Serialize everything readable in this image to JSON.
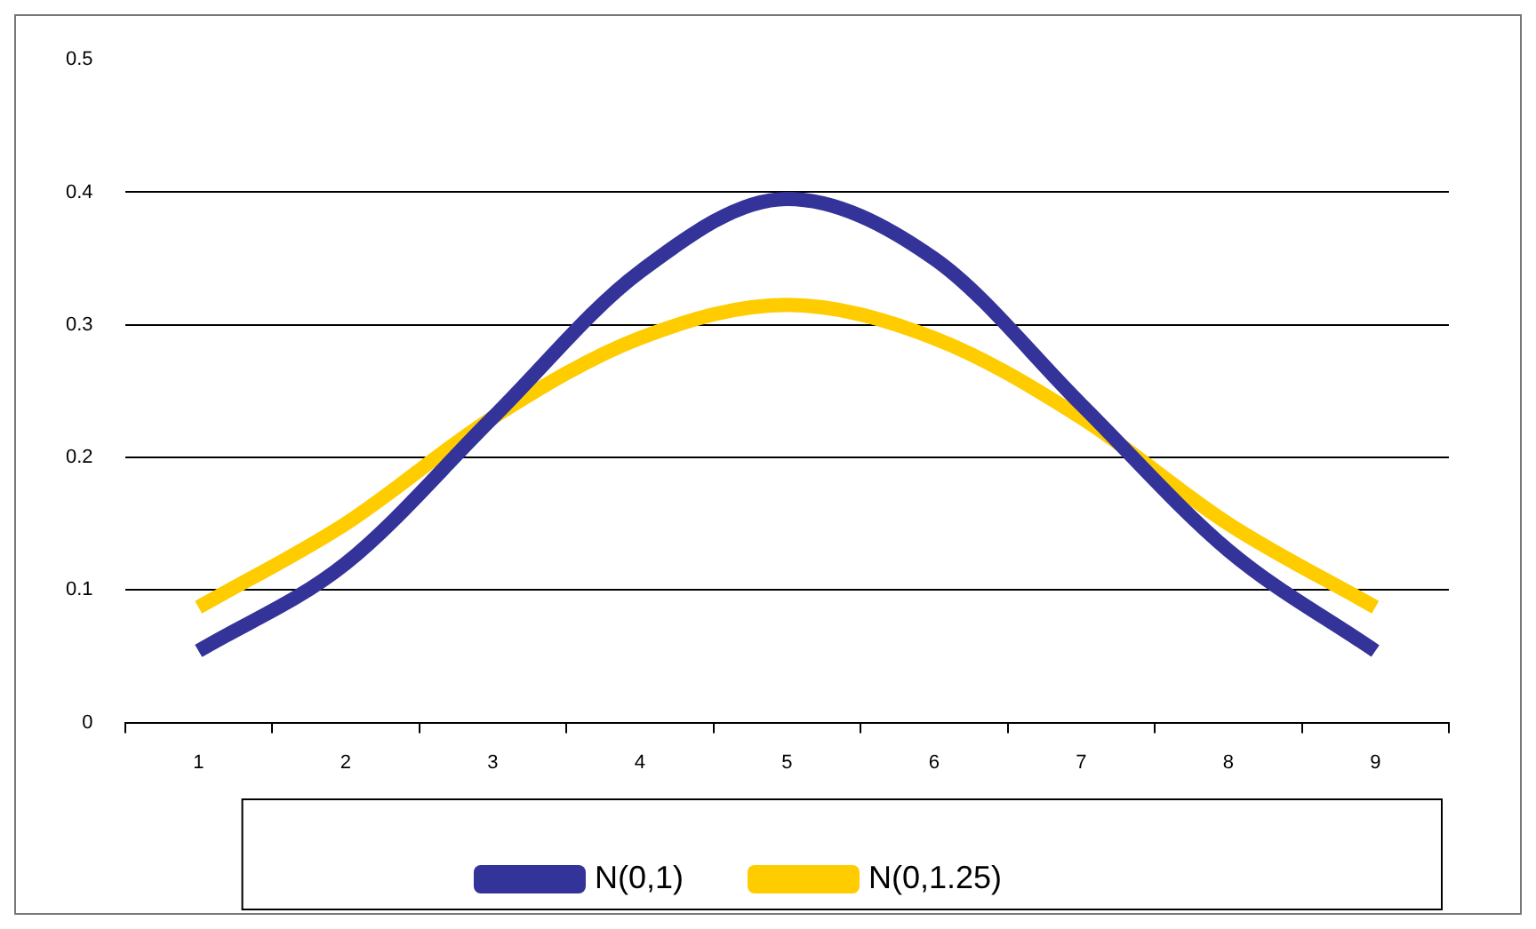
{
  "chart_data": {
    "type": "line",
    "categories": [
      "1",
      "2",
      "3",
      "4",
      "5",
      "6",
      "7",
      "8",
      "9"
    ],
    "series": [
      {
        "name": "N(0,1)",
        "color": "#333399",
        "values": [
          0.054,
          0.12,
          0.23,
          0.34,
          0.395,
          0.35,
          0.24,
          0.13,
          0.054
        ]
      },
      {
        "name": "N(0,1.25)",
        "color": "#ffcc00",
        "values": [
          0.087,
          0.15,
          0.23,
          0.29,
          0.315,
          0.29,
          0.23,
          0.15,
          0.087
        ]
      }
    ],
    "ylim": [
      0,
      0.5
    ],
    "yticks": [
      0,
      0.1,
      0.2,
      0.3,
      0.4,
      0.5
    ],
    "grid": "y",
    "legend": "bottom",
    "marker": "none",
    "line_style": "solid"
  }
}
